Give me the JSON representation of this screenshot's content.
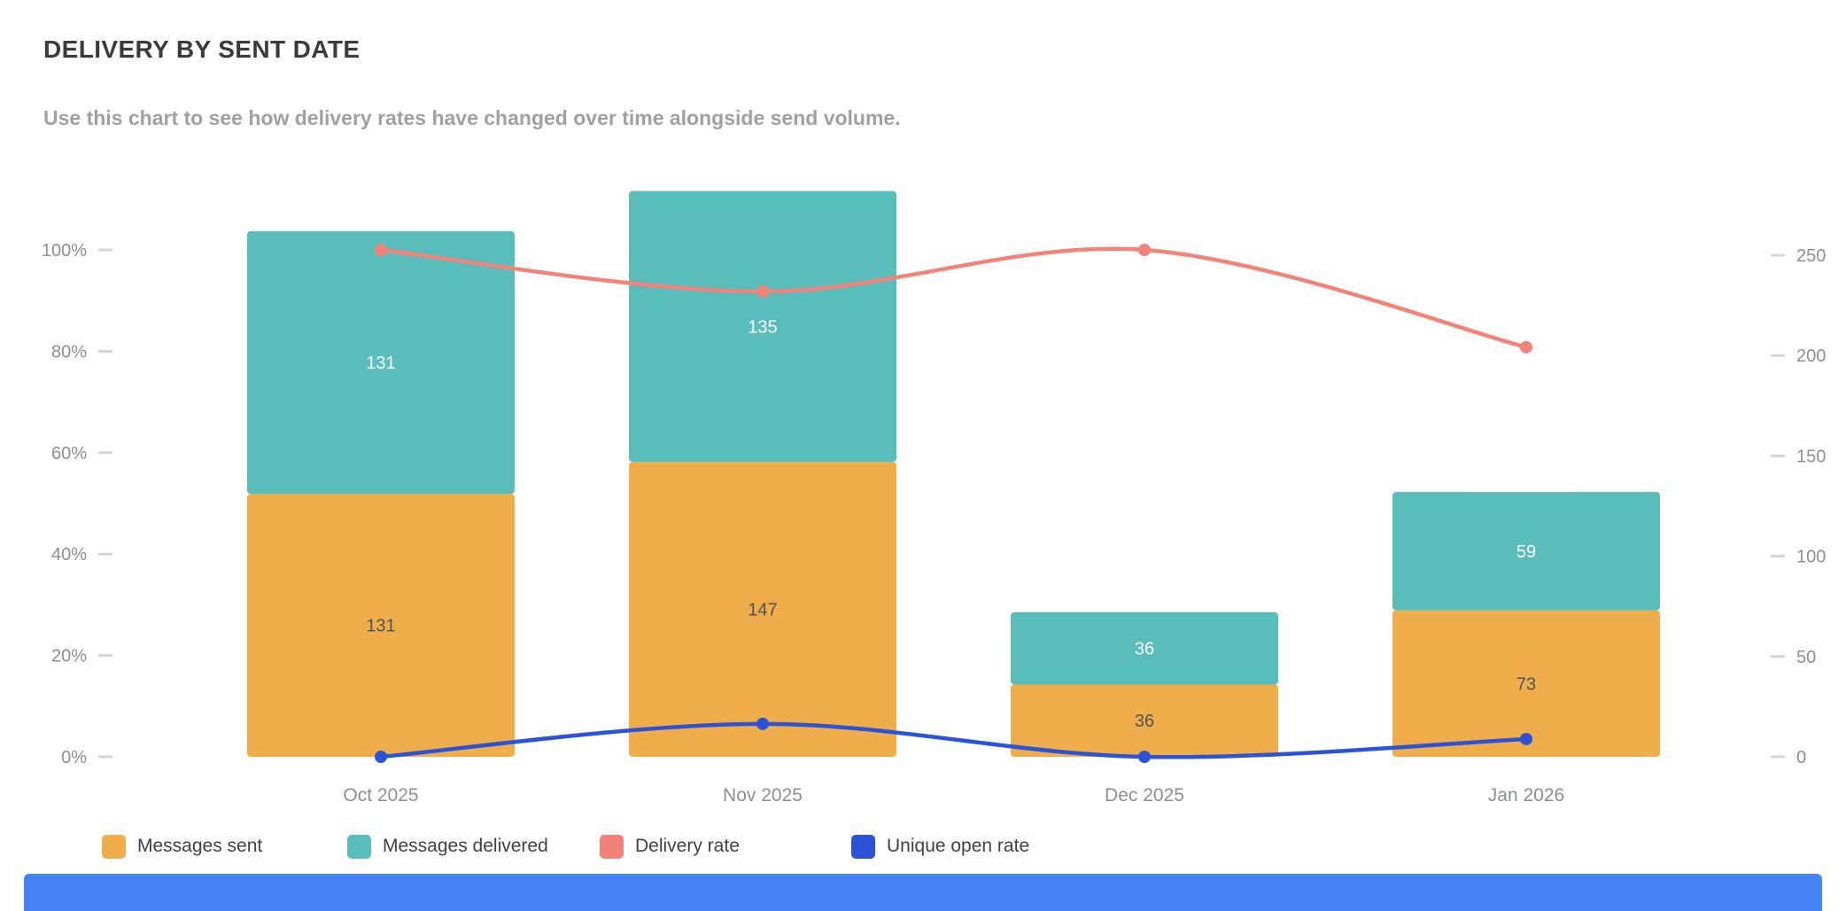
{
  "header": {
    "title": "DELIVERY BY SENT DATE",
    "subtitle": "Use this chart to see how delivery rates have changed over time alongside send volume."
  },
  "chart_data": {
    "type": "combo",
    "subtype": "stacked-bar-with-lines",
    "categories": [
      "Oct 2025",
      "Nov 2025",
      "Dec 2025",
      "Jan 2026"
    ],
    "bar_series": [
      {
        "name": "Messages sent",
        "color": "#EFAE4B",
        "label_color": "#4F5357",
        "values": [
          131,
          147,
          36,
          73
        ],
        "axis": "count"
      },
      {
        "name": "Messages delivered",
        "color": "#58BDBB",
        "label_color": "#FFFFFF",
        "values": [
          131,
          135,
          36,
          59
        ],
        "axis": "count"
      }
    ],
    "line_series": [
      {
        "name": "Delivery rate",
        "color": "#F2837B",
        "values": [
          100,
          91.8,
          100,
          80.8
        ],
        "axis": "percent"
      },
      {
        "name": "Unique open rate",
        "color": "#2B53D8",
        "values": [
          0,
          6.5,
          0,
          3.5
        ],
        "axis": "percent"
      }
    ],
    "left_axis": {
      "ticks": [
        "0%",
        "20%",
        "40%",
        "60%",
        "80%",
        "100%"
      ],
      "min": 0,
      "max": 100,
      "unit": "percent"
    },
    "right_axis": {
      "ticks": [
        "0",
        "50",
        "100",
        "150",
        "200",
        "250"
      ],
      "min": 0,
      "max": 250,
      "unit": "count"
    },
    "stacked": true,
    "grid": false,
    "legend_position": "bottom"
  },
  "legend": {
    "items": [
      {
        "label": "Messages sent",
        "color": "#EFAE4B"
      },
      {
        "label": "Messages delivered",
        "color": "#58BDBB"
      },
      {
        "label": "Delivery rate",
        "color": "#F2837B"
      },
      {
        "label": "Unique open rate",
        "color": "#2B53D8"
      }
    ]
  },
  "banner": {
    "color": "#4483F4"
  }
}
